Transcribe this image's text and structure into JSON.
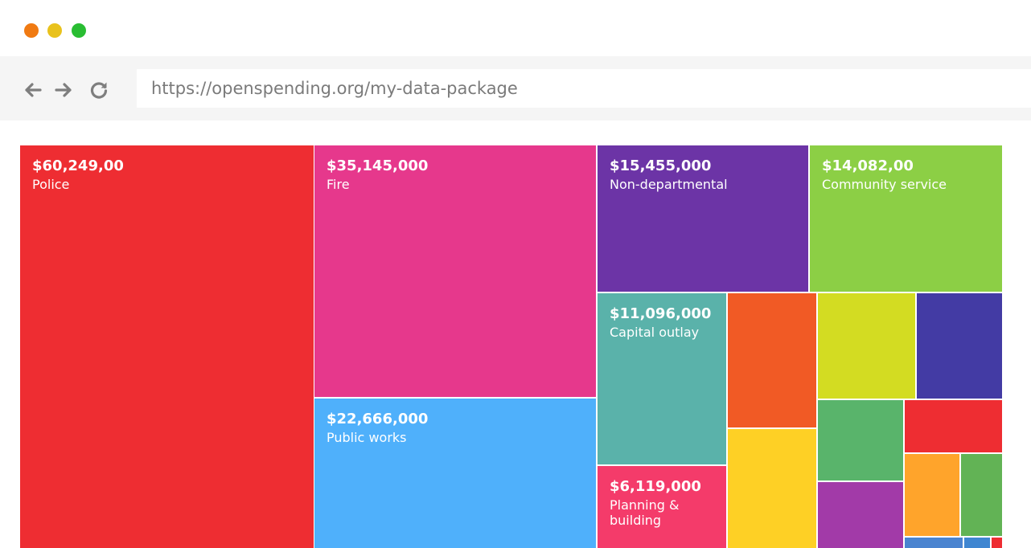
{
  "window": {
    "traffic_lights": [
      {
        "name": "close",
        "color": "#f07a12"
      },
      {
        "name": "minimize",
        "color": "#e9c21c"
      },
      {
        "name": "maximize",
        "color": "#29bd32"
      }
    ]
  },
  "toolbar": {
    "back_icon": "arrow-left-icon",
    "forward_icon": "arrow-right-icon",
    "reload_icon": "reload-icon",
    "url": "https://openspending.org/my-data-package"
  },
  "treemap": {
    "tiles": [
      {
        "amount": "$60,249,00",
        "name": "Police",
        "color": "#ee2d32"
      },
      {
        "amount": "$35,145,000",
        "name": "Fire",
        "color": "#e6388c"
      },
      {
        "amount": "$22,666,000",
        "name": "Public works",
        "color": "#4fb0fb"
      },
      {
        "amount": "$15,455,000",
        "name": "Non-departmental",
        "color": "#6c34a6"
      },
      {
        "amount": "$14,082,00",
        "name": "Community service",
        "color": "#8ccf45"
      },
      {
        "amount": "$11,096,000",
        "name": "Capital outlay",
        "color": "#5ab2aa"
      },
      {
        "amount": "$6,119,000",
        "name": "Planning & building",
        "color": "#f43b6a"
      },
      {
        "amount": "",
        "name": "",
        "color": "#f15a25"
      },
      {
        "amount": "",
        "name": "",
        "color": "#fed025"
      },
      {
        "amount": "",
        "name": "",
        "color": "#d3dc22"
      },
      {
        "amount": "",
        "name": "",
        "color": "#433ba4"
      },
      {
        "amount": "",
        "name": "",
        "color": "#59b46b"
      },
      {
        "amount": "",
        "name": "",
        "color": "#a23aa8"
      },
      {
        "amount": "",
        "name": "",
        "color": "#ee2d32"
      },
      {
        "amount": "",
        "name": "",
        "color": "#ffa42b"
      },
      {
        "amount": "",
        "name": "",
        "color": "#62b355"
      },
      {
        "amount": "",
        "name": "",
        "color": "#4a84d0"
      },
      {
        "amount": "",
        "name": "",
        "color": "#3f86d1"
      },
      {
        "amount": "",
        "name": "",
        "color": "#ee2d32"
      }
    ]
  }
}
